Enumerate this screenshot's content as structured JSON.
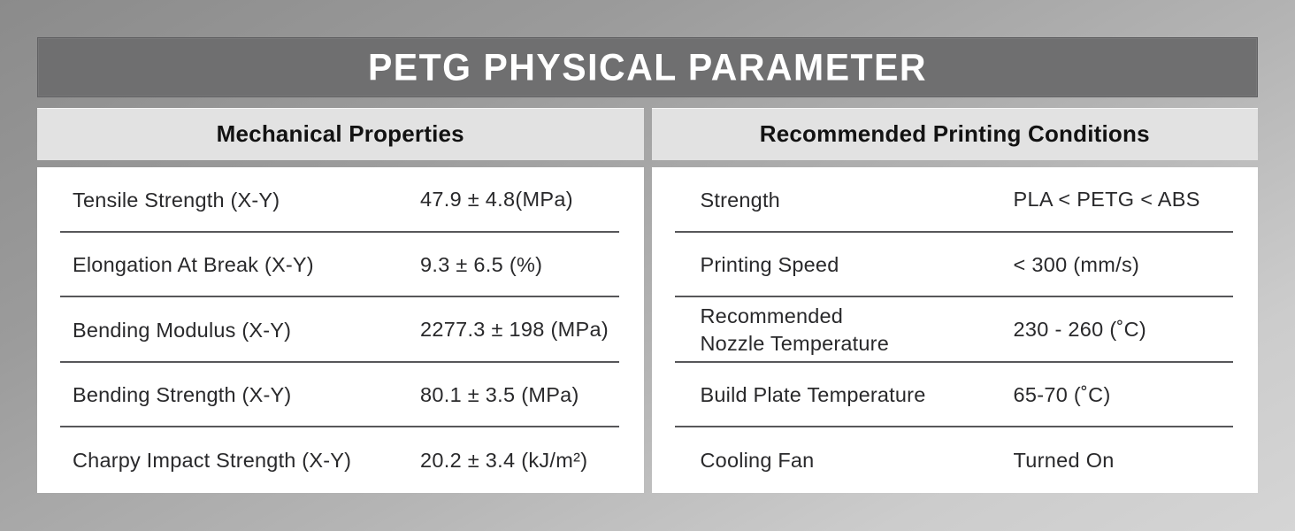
{
  "title": "PETG PHYSICAL PARAMETER",
  "mechanical": {
    "header": "Mechanical Properties",
    "rows": [
      {
        "label": "Tensile Strength (X-Y)",
        "value": "47.9 ± 4.8(MPa)"
      },
      {
        "label": "Elongation At Break (X-Y)",
        "value": "9.3 ± 6.5 (%)"
      },
      {
        "label": "Bending Modulus (X-Y)",
        "value": "2277.3 ± 198 (MPa)"
      },
      {
        "label": "Bending Strength (X-Y)",
        "value": "80.1 ± 3.5 (MPa)"
      },
      {
        "label": "Charpy Impact Strength (X-Y)",
        "value": "20.2 ± 3.4 (kJ/m²)"
      }
    ]
  },
  "printing": {
    "header": "Recommended Printing Conditions",
    "rows": [
      {
        "label": "Strength",
        "value": "PLA < PETG < ABS"
      },
      {
        "label": "Printing Speed",
        "value": "< 300 (mm/s)"
      },
      {
        "label": "Recommended\nNozzle Temperature",
        "value": "230 - 260 (˚C)"
      },
      {
        "label": "Build Plate Temperature",
        "value": "65-70 (˚C)"
      },
      {
        "label": "Cooling Fan",
        "value": "Turned On"
      }
    ]
  },
  "colors": {
    "title_bar": "#6f6f70",
    "panel_header": "#e2e2e2",
    "panel_body": "#ffffff",
    "separator": "#57575a",
    "text": "#29292b",
    "title_text": "#ffffff"
  }
}
